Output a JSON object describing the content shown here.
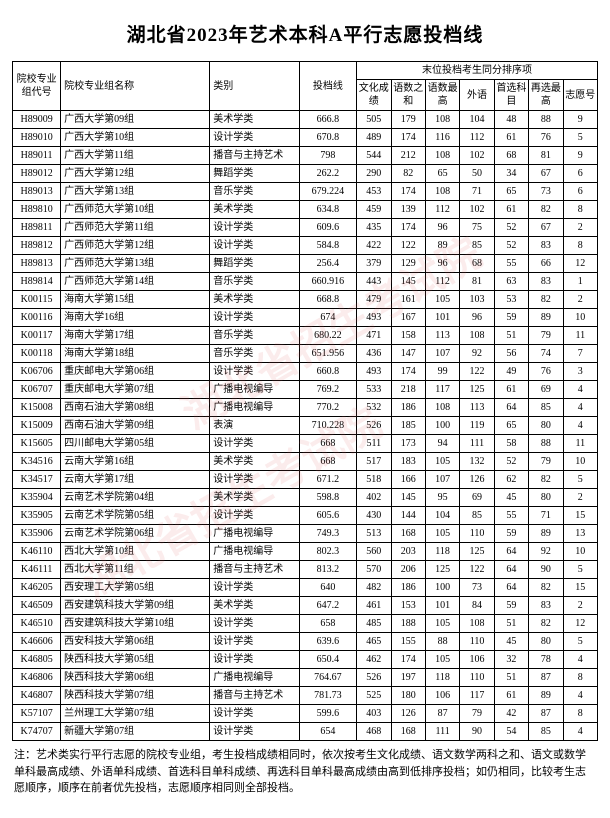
{
  "title": "湖北省2023年艺术本科A平行志愿投档线",
  "headers": {
    "top": "末位投档考生同分排序项",
    "code": "院校专业组代号",
    "name": "院校专业组名称",
    "type": "类别",
    "score": "投档线",
    "c1": "文化成绩",
    "c2": "语数之和",
    "c3": "语数最高",
    "c4": "外语",
    "c5": "首选科目",
    "c6": "再选最高",
    "c7": "志愿号"
  },
  "rows": [
    {
      "code": "H89009",
      "name": "广西大学第09组",
      "type": "美术学类",
      "score": "666.8",
      "c1": "505",
      "c2": "179",
      "c3": "108",
      "c4": "104",
      "c5": "48",
      "c6": "88",
      "c7": "9"
    },
    {
      "code": "H89010",
      "name": "广西大学第10组",
      "type": "设计学类",
      "score": "670.8",
      "c1": "489",
      "c2": "174",
      "c3": "116",
      "c4": "112",
      "c5": "61",
      "c6": "76",
      "c7": "5"
    },
    {
      "code": "H89011",
      "name": "广西大学第11组",
      "type": "播音与主持艺术",
      "score": "798",
      "c1": "544",
      "c2": "212",
      "c3": "108",
      "c4": "102",
      "c5": "68",
      "c6": "81",
      "c7": "9"
    },
    {
      "code": "H89012",
      "name": "广西大学第12组",
      "type": "舞蹈学类",
      "score": "262.2",
      "c1": "290",
      "c2": "82",
      "c3": "65",
      "c4": "50",
      "c5": "34",
      "c6": "67",
      "c7": "6"
    },
    {
      "code": "H89013",
      "name": "广西大学第13组",
      "type": "音乐学类",
      "score": "679.224",
      "c1": "453",
      "c2": "174",
      "c3": "108",
      "c4": "71",
      "c5": "65",
      "c6": "73",
      "c7": "6"
    },
    {
      "code": "H89810",
      "name": "广西师范大学第10组",
      "type": "美术学类",
      "score": "634.8",
      "c1": "459",
      "c2": "139",
      "c3": "112",
      "c4": "102",
      "c5": "61",
      "c6": "82",
      "c7": "8"
    },
    {
      "code": "H89811",
      "name": "广西师范大学第11组",
      "type": "设计学类",
      "score": "609.6",
      "c1": "435",
      "c2": "174",
      "c3": "96",
      "c4": "75",
      "c5": "52",
      "c6": "67",
      "c7": "2"
    },
    {
      "code": "H89812",
      "name": "广西师范大学第12组",
      "type": "设计学类",
      "score": "584.8",
      "c1": "422",
      "c2": "122",
      "c3": "89",
      "c4": "85",
      "c5": "52",
      "c6": "83",
      "c7": "8"
    },
    {
      "code": "H89813",
      "name": "广西师范大学第13组",
      "type": "舞蹈学类",
      "score": "256.4",
      "c1": "379",
      "c2": "129",
      "c3": "96",
      "c4": "68",
      "c5": "55",
      "c6": "66",
      "c7": "12"
    },
    {
      "code": "H89814",
      "name": "广西师范大学第14组",
      "type": "音乐学类",
      "score": "660.916",
      "c1": "443",
      "c2": "145",
      "c3": "112",
      "c4": "81",
      "c5": "63",
      "c6": "83",
      "c7": "1"
    },
    {
      "code": "K00115",
      "name": "海南大学第15组",
      "type": "美术学类",
      "score": "668.8",
      "c1": "479",
      "c2": "161",
      "c3": "105",
      "c4": "103",
      "c5": "53",
      "c6": "82",
      "c7": "2"
    },
    {
      "code": "K00116",
      "name": "海南大学16组",
      "type": "设计学类",
      "score": "674",
      "c1": "493",
      "c2": "167",
      "c3": "101",
      "c4": "96",
      "c5": "59",
      "c6": "89",
      "c7": "10"
    },
    {
      "code": "K00117",
      "name": "海南大学第17组",
      "type": "音乐学类",
      "score": "680.22",
      "c1": "471",
      "c2": "158",
      "c3": "113",
      "c4": "108",
      "c5": "51",
      "c6": "79",
      "c7": "11"
    },
    {
      "code": "K00118",
      "name": "海南大学第18组",
      "type": "音乐学类",
      "score": "651.956",
      "c1": "436",
      "c2": "147",
      "c3": "107",
      "c4": "92",
      "c5": "56",
      "c6": "74",
      "c7": "7"
    },
    {
      "code": "K06706",
      "name": "重庆邮电大学第06组",
      "type": "设计学类",
      "score": "660.8",
      "c1": "493",
      "c2": "174",
      "c3": "99",
      "c4": "122",
      "c5": "49",
      "c6": "76",
      "c7": "3"
    },
    {
      "code": "K06707",
      "name": "重庆邮电大学第07组",
      "type": "广播电视编导",
      "score": "769.2",
      "c1": "533",
      "c2": "218",
      "c3": "117",
      "c4": "125",
      "c5": "61",
      "c6": "69",
      "c7": "4"
    },
    {
      "code": "K15008",
      "name": "西南石油大学第08组",
      "type": "广播电视编导",
      "score": "770.2",
      "c1": "532",
      "c2": "186",
      "c3": "108",
      "c4": "113",
      "c5": "64",
      "c6": "85",
      "c7": "4"
    },
    {
      "code": "K15009",
      "name": "西南石油大学第09组",
      "type": "表演",
      "score": "710.228",
      "c1": "526",
      "c2": "185",
      "c3": "100",
      "c4": "119",
      "c5": "65",
      "c6": "80",
      "c7": "4"
    },
    {
      "code": "K15605",
      "name": "四川邮电大学第05组",
      "type": "设计学类",
      "score": "668",
      "c1": "511",
      "c2": "173",
      "c3": "94",
      "c4": "111",
      "c5": "58",
      "c6": "88",
      "c7": "11"
    },
    {
      "code": "K34516",
      "name": "云南大学第16组",
      "type": "美术学类",
      "score": "668",
      "c1": "517",
      "c2": "183",
      "c3": "105",
      "c4": "132",
      "c5": "52",
      "c6": "79",
      "c7": "10"
    },
    {
      "code": "K34517",
      "name": "云南大学第17组",
      "type": "设计学类",
      "score": "671.2",
      "c1": "518",
      "c2": "166",
      "c3": "107",
      "c4": "126",
      "c5": "62",
      "c6": "82",
      "c7": "5"
    },
    {
      "code": "K35904",
      "name": "云南艺术学院第04组",
      "type": "美术学类",
      "score": "598.8",
      "c1": "402",
      "c2": "145",
      "c3": "95",
      "c4": "69",
      "c5": "45",
      "c6": "80",
      "c7": "2"
    },
    {
      "code": "K35905",
      "name": "云南艺术学院第05组",
      "type": "设计学类",
      "score": "605.6",
      "c1": "430",
      "c2": "144",
      "c3": "104",
      "c4": "85",
      "c5": "55",
      "c6": "71",
      "c7": "15"
    },
    {
      "code": "K35906",
      "name": "云南艺术学院第06组",
      "type": "广播电视编导",
      "score": "749.3",
      "c1": "513",
      "c2": "168",
      "c3": "105",
      "c4": "110",
      "c5": "59",
      "c6": "89",
      "c7": "13"
    },
    {
      "code": "K46110",
      "name": "西北大学第10组",
      "type": "广播电视编导",
      "score": "802.3",
      "c1": "560",
      "c2": "203",
      "c3": "118",
      "c4": "125",
      "c5": "64",
      "c6": "92",
      "c7": "10"
    },
    {
      "code": "K46111",
      "name": "西北大学第11组",
      "type": "播音与主持艺术",
      "score": "813.2",
      "c1": "570",
      "c2": "206",
      "c3": "125",
      "c4": "122",
      "c5": "64",
      "c6": "90",
      "c7": "5"
    },
    {
      "code": "K46205",
      "name": "西安理工大学第05组",
      "type": "设计学类",
      "score": "640",
      "c1": "482",
      "c2": "186",
      "c3": "100",
      "c4": "73",
      "c5": "64",
      "c6": "82",
      "c7": "15"
    },
    {
      "code": "K46509",
      "name": "西安建筑科技大学第09组",
      "type": "美术学类",
      "score": "647.2",
      "c1": "461",
      "c2": "153",
      "c3": "101",
      "c4": "84",
      "c5": "59",
      "c6": "83",
      "c7": "2"
    },
    {
      "code": "K46510",
      "name": "西安建筑科技大学第10组",
      "type": "设计学类",
      "score": "658",
      "c1": "485",
      "c2": "188",
      "c3": "105",
      "c4": "108",
      "c5": "51",
      "c6": "82",
      "c7": "12"
    },
    {
      "code": "K46606",
      "name": "西安科技大学第06组",
      "type": "设计学类",
      "score": "639.6",
      "c1": "465",
      "c2": "155",
      "c3": "88",
      "c4": "110",
      "c5": "45",
      "c6": "80",
      "c7": "5"
    },
    {
      "code": "K46805",
      "name": "陕西科技大学第05组",
      "type": "设计学类",
      "score": "650.4",
      "c1": "462",
      "c2": "174",
      "c3": "105",
      "c4": "106",
      "c5": "32",
      "c6": "78",
      "c7": "4"
    },
    {
      "code": "K46806",
      "name": "陕西科技大学第06组",
      "type": "广播电视编导",
      "score": "764.67",
      "c1": "526",
      "c2": "197",
      "c3": "118",
      "c4": "110",
      "c5": "51",
      "c6": "87",
      "c7": "8"
    },
    {
      "code": "K46807",
      "name": "陕西科技大学第07组",
      "type": "播音与主持艺术",
      "score": "781.73",
      "c1": "525",
      "c2": "180",
      "c3": "106",
      "c4": "117",
      "c5": "61",
      "c6": "89",
      "c7": "4"
    },
    {
      "code": "K57107",
      "name": "兰州理工大学第07组",
      "type": "设计学类",
      "score": "599.6",
      "c1": "403",
      "c2": "126",
      "c3": "87",
      "c4": "79",
      "c5": "42",
      "c6": "87",
      "c7": "8"
    },
    {
      "code": "K74707",
      "name": "新疆大学第07组",
      "type": "设计学类",
      "score": "654",
      "c1": "468",
      "c2": "168",
      "c3": "111",
      "c4": "90",
      "c5": "54",
      "c6": "85",
      "c7": "4"
    }
  ],
  "footnote": "注：艺术类实行平行志愿的院校专业组，考生投档成绩相同时，依次按考生文化成绩、语文数学两科之和、语文或数学单科最高成绩、外语单科成绩、首选科目单科成绩、再选科目单科最高成绩由高到低排序投档；如仍相同，比较考生志愿顺序，顺序在前者优先投档，志愿顺序相同则全部投档。",
  "watermark": "湖北省招生考试院",
  "colors": {
    "border": "#000000",
    "background": "#ffffff",
    "text": "#000000",
    "watermark": "rgba(220,100,100,0.12)"
  }
}
